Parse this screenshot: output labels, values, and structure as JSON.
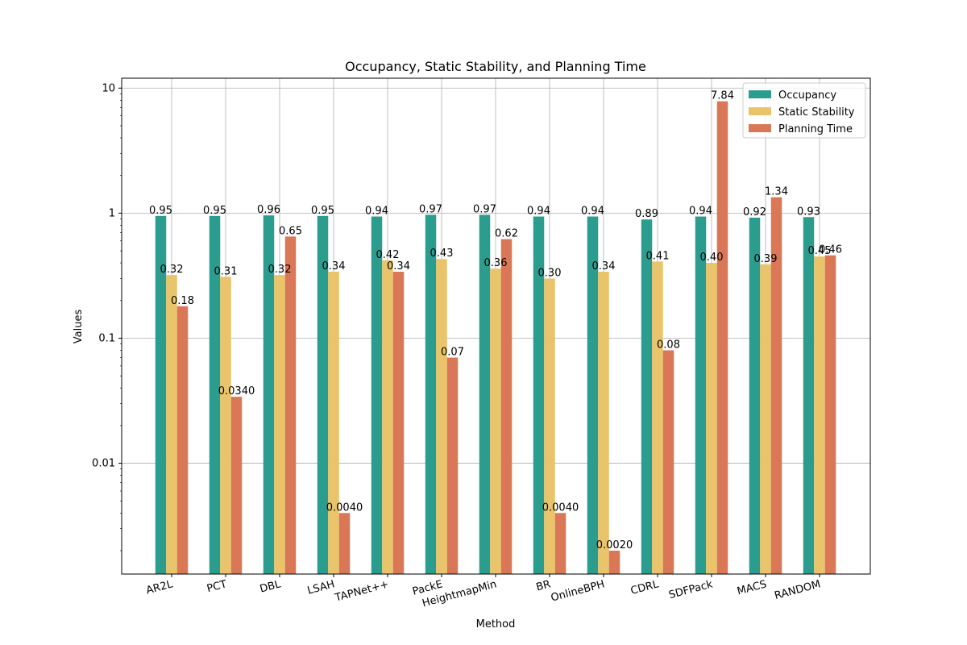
{
  "chart_data": {
    "type": "bar",
    "title": "Occupancy, Static Stability, and Planning Time",
    "xlabel": "Method",
    "ylabel": "Values",
    "yscale": "log",
    "ylim": [
      0.0013,
      12
    ],
    "yticks": [
      {
        "value": 0.01,
        "label": "0.01"
      },
      {
        "value": 0.1,
        "label": "0.1"
      },
      {
        "value": 1,
        "label": "1"
      },
      {
        "value": 10,
        "label": "10"
      }
    ],
    "grid": true,
    "legend_position": "top-right",
    "categories": [
      "AR2L",
      "PCT",
      "DBL",
      "LSAH",
      "TAPNet++",
      "PackE",
      "HeightmapMin",
      "BR",
      "OnlineBPH",
      "CDRL",
      "SDFPack",
      "MACS",
      "RANDOM"
    ],
    "series": [
      {
        "name": "Occupancy",
        "color": "#2a9d8f",
        "values": [
          0.95,
          0.95,
          0.96,
          0.95,
          0.94,
          0.97,
          0.97,
          0.94,
          0.94,
          0.89,
          0.94,
          0.92,
          0.93
        ],
        "labels": [
          "0.95",
          "0.95",
          "0.96",
          "0.95",
          "0.94",
          "0.97",
          "0.97",
          "0.94",
          "0.94",
          "0.89",
          "0.94",
          "0.92",
          "0.93"
        ]
      },
      {
        "name": "Static Stability",
        "color": "#e9c46a",
        "values": [
          0.32,
          0.31,
          0.32,
          0.34,
          0.42,
          0.43,
          0.36,
          0.3,
          0.34,
          0.41,
          0.4,
          0.39,
          0.45
        ],
        "labels": [
          "0.32",
          "0.31",
          "0.32",
          "0.34",
          "0.42",
          "0.43",
          "0.36",
          "0.30",
          "0.34",
          "0.41",
          "0.40",
          "0.39",
          "0.45"
        ]
      },
      {
        "name": "Planning Time",
        "color": "#d97757",
        "values": [
          0.18,
          0.034,
          0.65,
          0.004,
          0.34,
          0.07,
          0.62,
          0.004,
          0.002,
          0.08,
          7.84,
          1.34,
          0.46
        ],
        "labels": [
          "0.18",
          "0.0340",
          "0.65",
          "0.0040",
          "0.34",
          "0.07",
          "0.62",
          "0.0040",
          "0.0020",
          "0.08",
          "7.84",
          "1.34",
          "0.46"
        ]
      }
    ]
  }
}
